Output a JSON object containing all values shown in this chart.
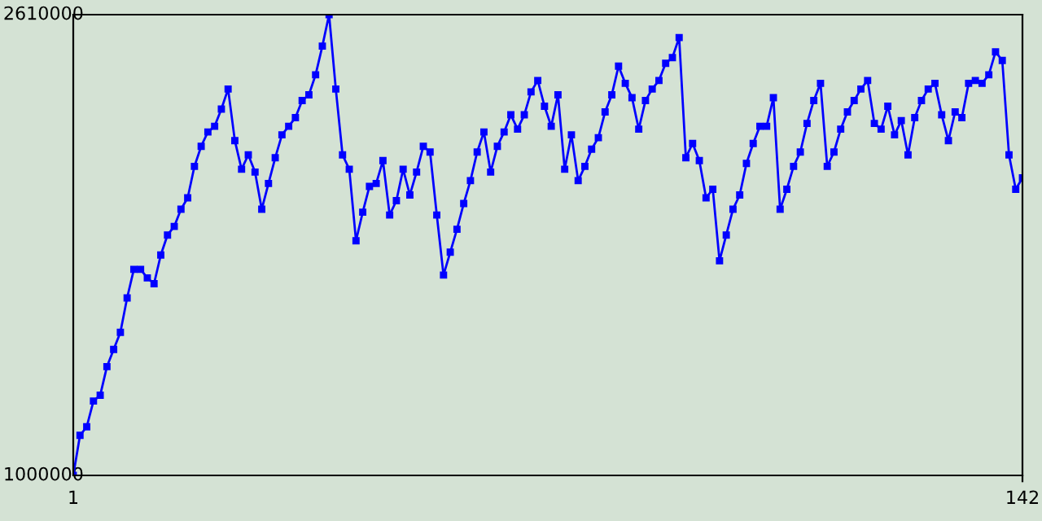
{
  "chart_data": {
    "type": "line",
    "x": [
      1,
      2,
      3,
      4,
      5,
      6,
      7,
      8,
      9,
      10,
      11,
      12,
      13,
      14,
      15,
      16,
      17,
      18,
      19,
      20,
      21,
      22,
      23,
      24,
      25,
      26,
      27,
      28,
      29,
      30,
      31,
      32,
      33,
      34,
      35,
      36,
      37,
      38,
      39,
      40,
      41,
      42,
      43,
      44,
      45,
      46,
      47,
      48,
      49,
      50,
      51,
      52,
      53,
      54,
      55,
      56,
      57,
      58,
      59,
      60,
      61,
      62,
      63,
      64,
      65,
      66,
      67,
      68,
      69,
      70,
      71,
      72,
      73,
      74,
      75,
      76,
      77,
      78,
      79,
      80,
      81,
      82,
      83,
      84,
      85,
      86,
      87,
      88,
      89,
      90,
      91,
      92,
      93,
      94,
      95,
      96,
      97,
      98,
      99,
      100,
      101,
      102,
      103,
      104,
      105,
      106,
      107,
      108,
      109,
      110,
      111,
      112,
      113,
      114,
      115,
      116,
      117,
      118,
      119,
      120,
      121,
      122,
      123,
      124,
      125,
      126,
      127,
      128,
      129,
      130,
      131,
      132,
      133,
      134,
      135,
      136,
      137,
      138,
      139,
      140,
      141,
      142
    ],
    "series": [
      {
        "color": "#0000ff",
        "values": [
          1000000,
          1140000,
          1170000,
          1260000,
          1280000,
          1380000,
          1440000,
          1500000,
          1620000,
          1720000,
          1720000,
          1690000,
          1670000,
          1770000,
          1840000,
          1870000,
          1930000,
          1970000,
          2080000,
          2150000,
          2200000,
          2220000,
          2280000,
          2350000,
          2170000,
          2070000,
          2120000,
          2060000,
          1930000,
          2020000,
          2110000,
          2190000,
          2220000,
          2250000,
          2310000,
          2330000,
          2400000,
          2500000,
          2610000,
          2350000,
          2120000,
          2070000,
          1820000,
          1920000,
          2010000,
          2020000,
          2100000,
          1910000,
          1960000,
          2070000,
          1980000,
          2060000,
          2150000,
          2130000,
          1910000,
          1700000,
          1780000,
          1860000,
          1950000,
          2030000,
          2130000,
          2200000,
          2060000,
          2150000,
          2200000,
          2260000,
          2210000,
          2260000,
          2340000,
          2380000,
          2290000,
          2220000,
          2330000,
          2070000,
          2190000,
          2030000,
          2080000,
          2140000,
          2180000,
          2270000,
          2330000,
          2430000,
          2370000,
          2320000,
          2210000,
          2310000,
          2350000,
          2380000,
          2440000,
          2460000,
          2530000,
          2110000,
          2160000,
          2100000,
          1970000,
          2000000,
          1750000,
          1840000,
          1930000,
          1980000,
          2090000,
          2160000,
          2220000,
          2220000,
          2320000,
          1930000,
          2000000,
          2080000,
          2130000,
          2230000,
          2310000,
          2370000,
          2080000,
          2130000,
          2210000,
          2270000,
          2310000,
          2350000,
          2380000,
          2230000,
          2210000,
          2290000,
          2190000,
          2240000,
          2120000,
          2250000,
          2310000,
          2350000,
          2370000,
          2260000,
          2170000,
          2270000,
          2250000,
          2370000,
          2380000,
          2370000,
          2400000,
          2480000,
          2450000,
          2120000,
          2000000,
          2040000
        ]
      }
    ],
    "xlim": [
      1,
      142
    ],
    "xticks": [
      1,
      142
    ],
    "ylim": [
      1000000,
      2610000
    ],
    "yticks": [
      1000000,
      2610000
    ],
    "marker": "square",
    "line_style": "solid",
    "grid": false
  }
}
